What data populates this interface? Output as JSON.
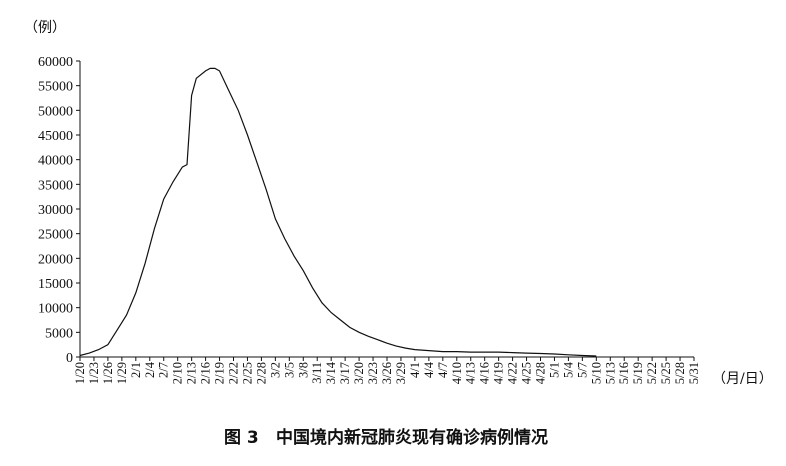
{
  "chart_data": {
    "type": "line",
    "title": "图 3　中国境内新冠肺炎现有确诊病例情况",
    "caption_number": "图 3",
    "caption_text": "中国境内新冠肺炎现有确诊病例情况",
    "ylabel": "（例）",
    "xlabel": "（月/日）",
    "ylim": [
      0,
      60000
    ],
    "y_ticks": [
      0,
      5000,
      10000,
      15000,
      20000,
      25000,
      30000,
      35000,
      40000,
      45000,
      50000,
      55000,
      60000
    ],
    "x_tick_labels": [
      "1/20",
      "1/23",
      "1/26",
      "1/29",
      "2/1",
      "2/4",
      "2/7",
      "2/10",
      "2/13",
      "2/16",
      "2/19",
      "2/22",
      "2/25",
      "2/28",
      "3/2",
      "3/5",
      "3/8",
      "3/11",
      "3/14",
      "3/17",
      "3/20",
      "3/23",
      "3/26",
      "3/29",
      "4/1",
      "4/4",
      "4/7",
      "4/10",
      "4/13",
      "4/16",
      "4/19",
      "4/22",
      "4/25",
      "4/28",
      "5/1",
      "5/4",
      "5/7",
      "5/10",
      "5/13",
      "5/16",
      "5/19",
      "5/22",
      "5/25",
      "5/28",
      "5/31"
    ],
    "grid": false,
    "series": [
      {
        "name": "",
        "x": [
          "1/20",
          "1/22",
          "1/24",
          "1/26",
          "1/28",
          "1/30",
          "2/1",
          "2/3",
          "2/5",
          "2/7",
          "2/9",
          "2/11",
          "2/12",
          "2/13",
          "2/14",
          "2/16",
          "2/17",
          "2/18",
          "2/19",
          "2/21",
          "2/23",
          "2/25",
          "2/27",
          "2/29",
          "3/2",
          "3/4",
          "3/6",
          "3/8",
          "3/10",
          "3/12",
          "3/14",
          "3/16",
          "3/18",
          "3/20",
          "3/22",
          "3/24",
          "3/26",
          "3/28",
          "3/30",
          "4/1",
          "4/4",
          "4/7",
          "4/10",
          "4/13",
          "4/16",
          "4/19",
          "4/22",
          "4/25",
          "4/28",
          "5/1",
          "5/4",
          "5/7",
          "5/10"
        ],
        "values": [
          300,
          800,
          1500,
          2500,
          5500,
          8500,
          13000,
          19000,
          26000,
          32000,
          35500,
          38500,
          39000,
          53000,
          56500,
          58000,
          58500,
          58500,
          58000,
          54000,
          50000,
          45000,
          39500,
          34000,
          28000,
          24000,
          20500,
          17500,
          14000,
          11000,
          9000,
          7500,
          6000,
          5000,
          4200,
          3500,
          2800,
          2200,
          1800,
          1500,
          1300,
          1100,
          1100,
          1000,
          1000,
          1000,
          900,
          800,
          700,
          600,
          450,
          300,
          200
        ]
      }
    ]
  }
}
